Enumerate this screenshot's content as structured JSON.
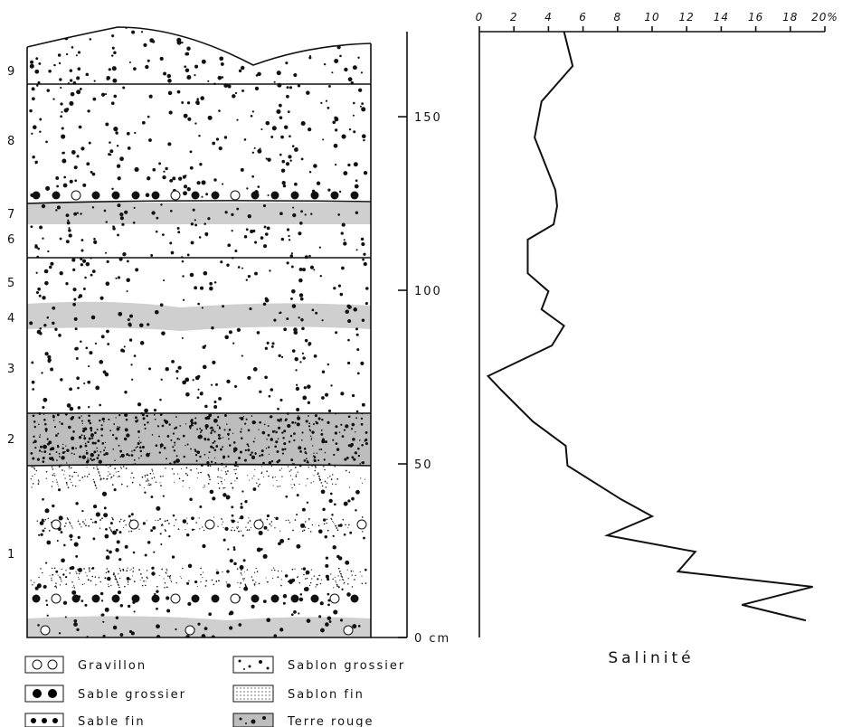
{
  "chart_data": {
    "type": "line",
    "xlabel": "Salinité",
    "values": [
      4.9,
      5.4,
      3.6,
      3.2,
      3.9,
      4.4,
      4.5,
      4.3,
      2.8,
      2.8,
      4.0,
      3.6,
      4.9,
      4.2,
      0.5,
      1.3,
      3.1,
      5.0,
      5.1,
      8.2,
      10.0,
      7.4,
      12.5,
      11.5,
      19.3,
      15.2,
      18.9
    ],
    "depths": [
      174.5,
      164.6,
      154.4,
      144,
      135.2,
      128.9,
      124.2,
      119,
      114.6,
      104.9,
      99.7,
      94.5,
      89.8,
      84.1,
      75.3,
      71.1,
      62.2,
      55.2,
      49.5,
      39.8,
      34.9,
      29.4,
      24.7,
      19,
      14.6,
      9.4,
      4.9
    ],
    "color": "#111111",
    "xlim": [
      0,
      20
    ],
    "xticks": [
      0,
      2,
      4,
      6,
      8,
      10,
      12,
      14,
      16,
      18,
      {
        "value": 20,
        "label": "20%"
      }
    ],
    "ylim": [
      0,
      174.5
    ],
    "yticks": [
      {
        "value": 0,
        "label": "0 cm"
      },
      50,
      100,
      150
    ]
  },
  "profile": {
    "layers": [
      "1",
      "2",
      "3",
      "4",
      "5",
      "6",
      "7",
      "8",
      "9"
    ],
    "legend": [
      "Gravillon",
      "Sable grossier",
      "Sable fin",
      "Sablon grossier",
      "Sablon fin",
      "Terre rouge"
    ]
  }
}
